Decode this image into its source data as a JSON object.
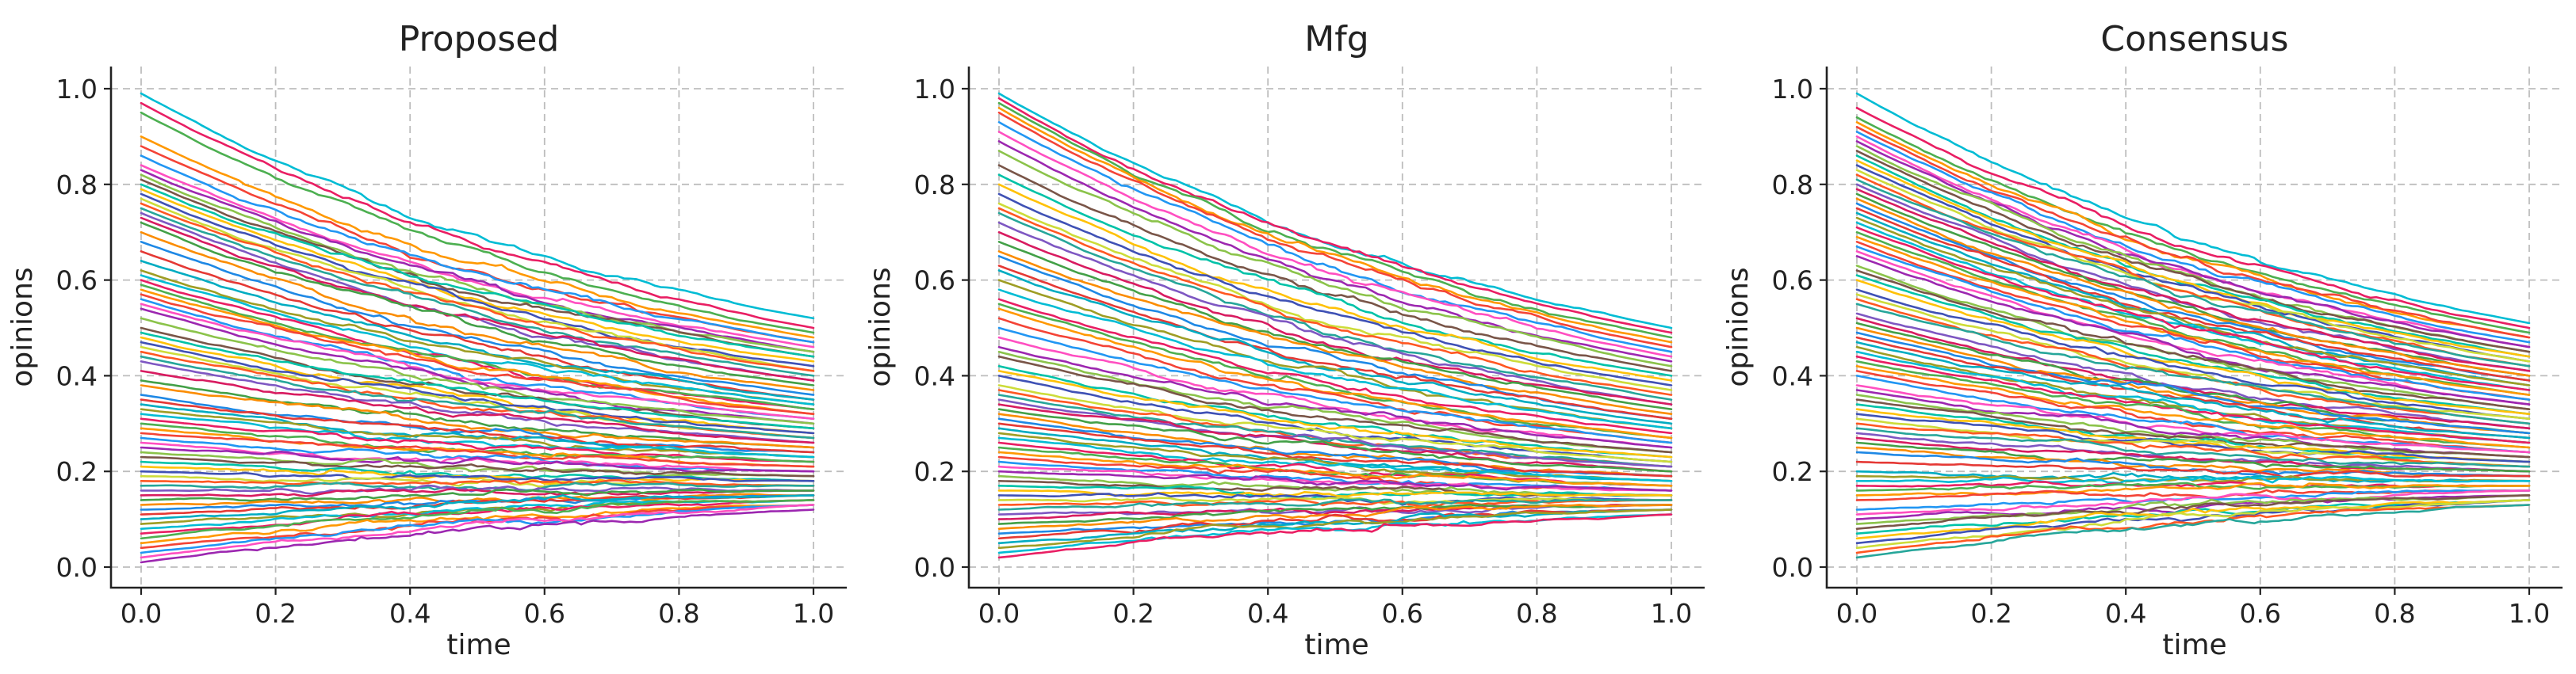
{
  "chart_data": [
    {
      "type": "line",
      "title": "Proposed",
      "xlabel": "time",
      "ylabel": "opinions",
      "xlim": [
        0.0,
        1.0
      ],
      "ylim": [
        0.0,
        1.0
      ],
      "xticks": [
        "0.0",
        "0.2",
        "0.4",
        "0.6",
        "0.8",
        "1.0"
      ],
      "yticks": [
        "0.0",
        "0.2",
        "0.4",
        "0.6",
        "0.8",
        "1.0"
      ],
      "grid": true,
      "trajectory_start": [
        0.99,
        0.97,
        0.95,
        0.9,
        0.88,
        0.86,
        0.84,
        0.83,
        0.82,
        0.81,
        0.8,
        0.79,
        0.78,
        0.77,
        0.76,
        0.75,
        0.74,
        0.73,
        0.72,
        0.7,
        0.68,
        0.66,
        0.64,
        0.62,
        0.61,
        0.6,
        0.59,
        0.58,
        0.57,
        0.56,
        0.55,
        0.54,
        0.52,
        0.5,
        0.49,
        0.48,
        0.47,
        0.46,
        0.45,
        0.44,
        0.43,
        0.41,
        0.39,
        0.38,
        0.36,
        0.35,
        0.34,
        0.33,
        0.32,
        0.31,
        0.3,
        0.29,
        0.28,
        0.27,
        0.26,
        0.25,
        0.24,
        0.23,
        0.22,
        0.21,
        0.2,
        0.19,
        0.18,
        0.17,
        0.16,
        0.15,
        0.14,
        0.13,
        0.12,
        0.11,
        0.1,
        0.09,
        0.08,
        0.07,
        0.06,
        0.05,
        0.04,
        0.03,
        0.02,
        0.01
      ],
      "trajectory_end": [
        0.52,
        0.5,
        0.49,
        0.48,
        0.47,
        0.47,
        0.46,
        0.45,
        0.45,
        0.44,
        0.44,
        0.43,
        0.42,
        0.41,
        0.41,
        0.4,
        0.39,
        0.39,
        0.38,
        0.37,
        0.36,
        0.35,
        0.35,
        0.34,
        0.34,
        0.33,
        0.33,
        0.32,
        0.32,
        0.31,
        0.31,
        0.3,
        0.3,
        0.29,
        0.29,
        0.28,
        0.28,
        0.27,
        0.27,
        0.27,
        0.26,
        0.26,
        0.25,
        0.25,
        0.24,
        0.24,
        0.23,
        0.23,
        0.23,
        0.22,
        0.22,
        0.21,
        0.21,
        0.2,
        0.2,
        0.2,
        0.19,
        0.19,
        0.18,
        0.18,
        0.18,
        0.17,
        0.17,
        0.17,
        0.16,
        0.16,
        0.16,
        0.15,
        0.15,
        0.15,
        0.15,
        0.14,
        0.14,
        0.14,
        0.14,
        0.13,
        0.13,
        0.13,
        0.13,
        0.12
      ]
    },
    {
      "type": "line",
      "title": "Mfg",
      "xlabel": "time",
      "ylabel": "opinions",
      "xlim": [
        0.0,
        1.0
      ],
      "ylim": [
        0.0,
        1.0
      ],
      "xticks": [
        "0.0",
        "0.2",
        "0.4",
        "0.6",
        "0.8",
        "1.0"
      ],
      "yticks": [
        "0.0",
        "0.2",
        "0.4",
        "0.6",
        "0.8",
        "1.0"
      ],
      "grid": true,
      "trajectory_start": [
        0.99,
        0.98,
        0.97,
        0.96,
        0.95,
        0.93,
        0.91,
        0.89,
        0.87,
        0.84,
        0.82,
        0.8,
        0.78,
        0.76,
        0.75,
        0.74,
        0.72,
        0.7,
        0.68,
        0.66,
        0.65,
        0.63,
        0.62,
        0.6,
        0.58,
        0.56,
        0.55,
        0.54,
        0.52,
        0.5,
        0.48,
        0.46,
        0.45,
        0.44,
        0.42,
        0.41,
        0.4,
        0.38,
        0.37,
        0.36,
        0.35,
        0.34,
        0.33,
        0.32,
        0.31,
        0.3,
        0.29,
        0.28,
        0.27,
        0.26,
        0.25,
        0.24,
        0.23,
        0.22,
        0.21,
        0.2,
        0.19,
        0.18,
        0.17,
        0.16,
        0.15,
        0.14,
        0.13,
        0.12,
        0.11,
        0.1,
        0.09,
        0.08,
        0.07,
        0.06,
        0.05,
        0.04,
        0.03,
        0.02
      ],
      "trajectory_end": [
        0.5,
        0.49,
        0.48,
        0.47,
        0.46,
        0.45,
        0.44,
        0.43,
        0.42,
        0.41,
        0.4,
        0.39,
        0.38,
        0.37,
        0.36,
        0.35,
        0.34,
        0.34,
        0.33,
        0.32,
        0.31,
        0.31,
        0.3,
        0.29,
        0.29,
        0.28,
        0.27,
        0.27,
        0.26,
        0.26,
        0.25,
        0.25,
        0.24,
        0.24,
        0.23,
        0.23,
        0.22,
        0.22,
        0.21,
        0.21,
        0.21,
        0.2,
        0.2,
        0.19,
        0.19,
        0.19,
        0.18,
        0.18,
        0.18,
        0.17,
        0.17,
        0.17,
        0.16,
        0.16,
        0.16,
        0.16,
        0.15,
        0.15,
        0.15,
        0.15,
        0.14,
        0.14,
        0.14,
        0.14,
        0.13,
        0.13,
        0.13,
        0.13,
        0.12,
        0.12,
        0.12,
        0.12,
        0.11,
        0.11
      ]
    },
    {
      "type": "line",
      "title": "Consensus",
      "xlabel": "time",
      "ylabel": "opinions",
      "xlim": [
        0.0,
        1.0
      ],
      "ylim": [
        0.0,
        1.0
      ],
      "xticks": [
        "0.0",
        "0.2",
        "0.4",
        "0.6",
        "0.8",
        "1.0"
      ],
      "yticks": [
        "0.0",
        "0.2",
        "0.4",
        "0.6",
        "0.8",
        "1.0"
      ],
      "grid": true,
      "trajectory_start": [
        0.99,
        0.96,
        0.94,
        0.93,
        0.92,
        0.91,
        0.9,
        0.89,
        0.88,
        0.87,
        0.86,
        0.85,
        0.84,
        0.83,
        0.82,
        0.81,
        0.8,
        0.79,
        0.78,
        0.77,
        0.76,
        0.75,
        0.74,
        0.73,
        0.72,
        0.71,
        0.7,
        0.69,
        0.68,
        0.67,
        0.66,
        0.65,
        0.63,
        0.62,
        0.61,
        0.6,
        0.58,
        0.57,
        0.56,
        0.55,
        0.53,
        0.52,
        0.51,
        0.5,
        0.49,
        0.48,
        0.47,
        0.46,
        0.45,
        0.44,
        0.43,
        0.42,
        0.41,
        0.4,
        0.38,
        0.37,
        0.36,
        0.35,
        0.34,
        0.33,
        0.32,
        0.31,
        0.3,
        0.29,
        0.28,
        0.27,
        0.26,
        0.25,
        0.24,
        0.22,
        0.2,
        0.19,
        0.18,
        0.17,
        0.16,
        0.15,
        0.14,
        0.12,
        0.11,
        0.1,
        0.09,
        0.08,
        0.07,
        0.06,
        0.05,
        0.04,
        0.03,
        0.02
      ],
      "trajectory_end": [
        0.51,
        0.5,
        0.49,
        0.48,
        0.48,
        0.47,
        0.46,
        0.46,
        0.45,
        0.45,
        0.44,
        0.44,
        0.43,
        0.43,
        0.42,
        0.42,
        0.41,
        0.41,
        0.4,
        0.4,
        0.39,
        0.39,
        0.38,
        0.38,
        0.37,
        0.37,
        0.36,
        0.36,
        0.35,
        0.35,
        0.34,
        0.34,
        0.33,
        0.33,
        0.32,
        0.32,
        0.31,
        0.31,
        0.3,
        0.3,
        0.29,
        0.29,
        0.28,
        0.28,
        0.28,
        0.27,
        0.27,
        0.26,
        0.26,
        0.26,
        0.25,
        0.25,
        0.24,
        0.24,
        0.24,
        0.23,
        0.23,
        0.23,
        0.22,
        0.22,
        0.22,
        0.21,
        0.21,
        0.21,
        0.2,
        0.2,
        0.2,
        0.19,
        0.19,
        0.19,
        0.18,
        0.18,
        0.18,
        0.17,
        0.17,
        0.17,
        0.16,
        0.16,
        0.16,
        0.15,
        0.15,
        0.15,
        0.14,
        0.14,
        0.14,
        0.14,
        0.13,
        0.13
      ]
    }
  ],
  "colors": {
    "series": [
      "#00bcd4",
      "#e91e63",
      "#4caf50",
      "#ff9800",
      "#f44336",
      "#2196f3",
      "#ff4fc1",
      "#9c27b0",
      "#8bc34a",
      "#795548",
      "#00c2a8",
      "#ffc107",
      "#3f51b5",
      "#cddc39",
      "#ff5722",
      "#26a69a",
      "#7e57c2",
      "#d81b60",
      "#43a047",
      "#fb8c00",
      "#1e88e5",
      "#e53935",
      "#00acc1",
      "#9e9d24"
    ],
    "grid": "#bdbdbd",
    "axis": "#222222"
  }
}
